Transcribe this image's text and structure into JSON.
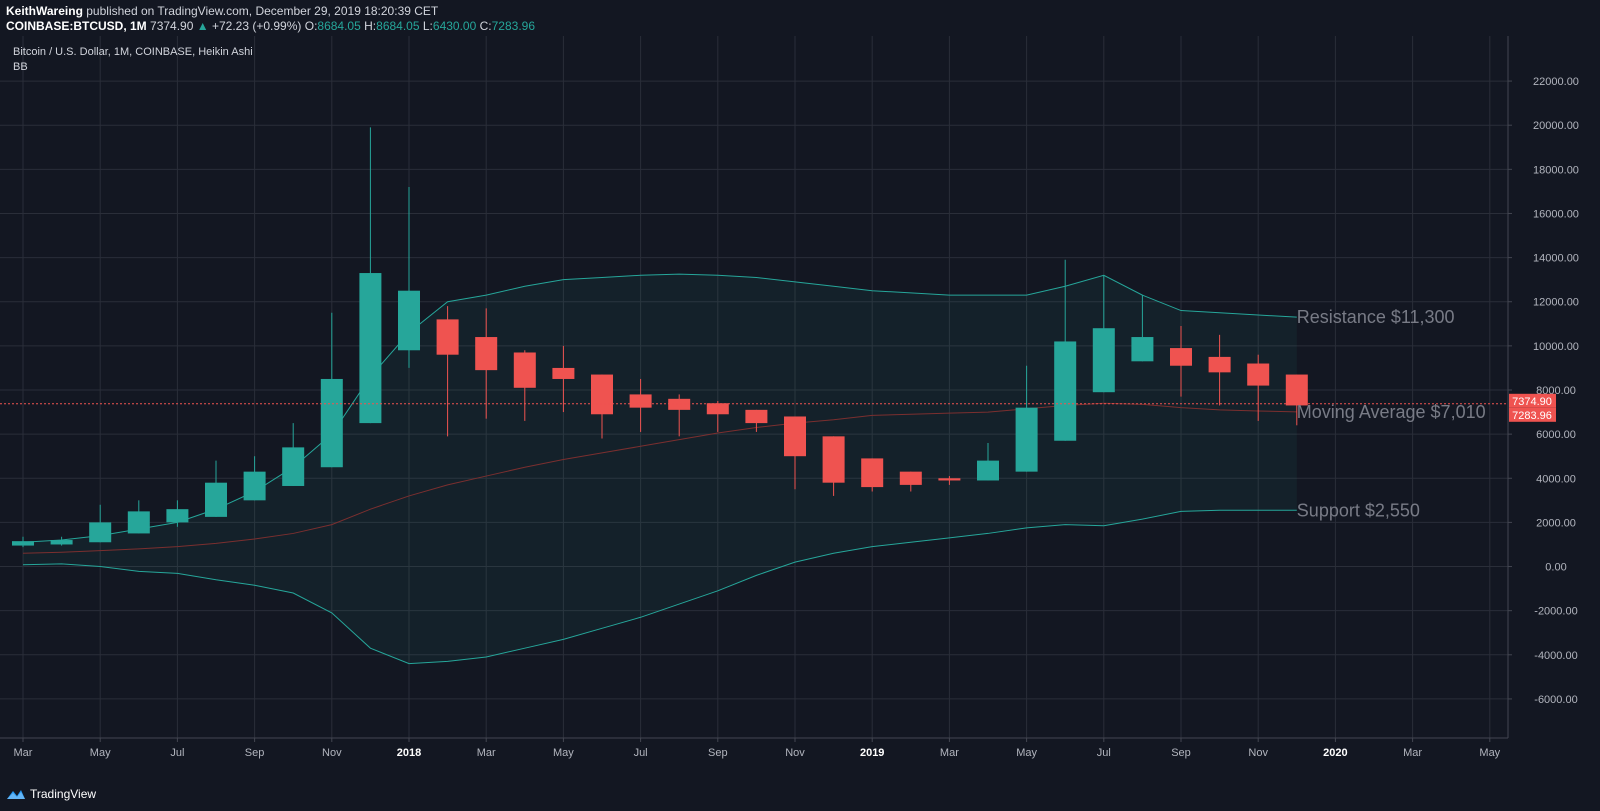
{
  "header": {
    "author": "KeithWareing",
    "published": "published on TradingView.com, December 29, 2019 18:20:39 CET",
    "symbol": "COINBASE:BTCUSD, 1M",
    "last": "7374.90",
    "change": "+72.23 (+0.99%)",
    "o_label": "O:",
    "o": "8684.05",
    "h_label": "H:",
    "h": "8684.05",
    "l_label": "L:",
    "l": "6430.00",
    "c_label": "C:",
    "c": "7283.96"
  },
  "legend": {
    "title": "Bitcoin / U.S. Dollar, 1M, COINBASE, Heikin Ashi",
    "indicator": "BB"
  },
  "footer": {
    "brand": "TradingView"
  },
  "colors": {
    "background": "#131722",
    "up": "#26a69a",
    "down": "#ef5350",
    "band": "#26a69a",
    "basis": "#7b2f2f",
    "grid": "#2a2e39",
    "text": "#b2b5be",
    "annotation": "#787b86"
  },
  "chart_data": {
    "type": "candlestick",
    "title": "Bitcoin / U.S. Dollar, 1M, COINBASE, Heikin Ashi",
    "ylim": [
      -7000,
      23000
    ],
    "yticks": [
      22000,
      20000,
      18000,
      16000,
      14000,
      12000,
      10000,
      8000,
      6000,
      4000,
      2000,
      0,
      -2000,
      -4000,
      -6000
    ],
    "ytick_labels": [
      "22000.00",
      "20000.00",
      "18000.00",
      "16000.00",
      "14000.00",
      "12000.00",
      "10000.00",
      "8000.00",
      "6000.00",
      "4000.00",
      "2000.00",
      "0.00",
      "-2000.00",
      "-4000.00",
      "-6000.00"
    ],
    "xticks": [
      {
        "i": 0,
        "label": "Mar",
        "bold": false
      },
      {
        "i": 2,
        "label": "May",
        "bold": false
      },
      {
        "i": 4,
        "label": "Jul",
        "bold": false
      },
      {
        "i": 6,
        "label": "Sep",
        "bold": false
      },
      {
        "i": 8,
        "label": "Nov",
        "bold": false
      },
      {
        "i": 10,
        "label": "2018",
        "bold": true
      },
      {
        "i": 12,
        "label": "Mar",
        "bold": false
      },
      {
        "i": 14,
        "label": "May",
        "bold": false
      },
      {
        "i": 16,
        "label": "Jul",
        "bold": false
      },
      {
        "i": 18,
        "label": "Sep",
        "bold": false
      },
      {
        "i": 20,
        "label": "Nov",
        "bold": false
      },
      {
        "i": 22,
        "label": "2019",
        "bold": true
      },
      {
        "i": 24,
        "label": "Mar",
        "bold": false
      },
      {
        "i": 26,
        "label": "May",
        "bold": false
      },
      {
        "i": 28,
        "label": "Jul",
        "bold": false
      },
      {
        "i": 30,
        "label": "Sep",
        "bold": false
      },
      {
        "i": 32,
        "label": "Nov",
        "bold": false
      },
      {
        "i": 34,
        "label": "2020",
        "bold": true
      },
      {
        "i": 36,
        "label": "Mar",
        "bold": false
      },
      {
        "i": 38,
        "label": "May",
        "bold": false
      }
    ],
    "x_slots": 40,
    "candles": [
      {
        "month": "2017-03",
        "open": 950,
        "high": 1350,
        "low": 880,
        "close": 1150
      },
      {
        "month": "2017-04",
        "open": 1000,
        "high": 1350,
        "low": 950,
        "close": 1200
      },
      {
        "month": "2017-05",
        "open": 1100,
        "high": 2800,
        "low": 1100,
        "close": 2000
      },
      {
        "month": "2017-06",
        "open": 1500,
        "high": 3000,
        "low": 1500,
        "close": 2500
      },
      {
        "month": "2017-07",
        "open": 2000,
        "high": 3000,
        "low": 1800,
        "close": 2600
      },
      {
        "month": "2017-08",
        "open": 2250,
        "high": 4800,
        "low": 2250,
        "close": 3800
      },
      {
        "month": "2017-09",
        "open": 3000,
        "high": 5000,
        "low": 3000,
        "close": 4300
      },
      {
        "month": "2017-10",
        "open": 3650,
        "high": 6500,
        "low": 3650,
        "close": 5400
      },
      {
        "month": "2017-11",
        "open": 4500,
        "high": 11500,
        "low": 4500,
        "close": 8500
      },
      {
        "month": "2017-12",
        "open": 6500,
        "high": 19900,
        "low": 6500,
        "close": 13300
      },
      {
        "month": "2018-01",
        "open": 9800,
        "high": 17200,
        "low": 9000,
        "close": 12500
      },
      {
        "month": "2018-02",
        "open": 11200,
        "high": 11800,
        "low": 5900,
        "close": 9600
      },
      {
        "month": "2018-03",
        "open": 10400,
        "high": 11700,
        "low": 6700,
        "close": 8900
      },
      {
        "month": "2018-04",
        "open": 9700,
        "high": 9800,
        "low": 6600,
        "close": 8100
      },
      {
        "month": "2018-05",
        "open": 9000,
        "high": 10000,
        "low": 7000,
        "close": 8500
      },
      {
        "month": "2018-06",
        "open": 8700,
        "high": 8700,
        "low": 5800,
        "close": 6900
      },
      {
        "month": "2018-07",
        "open": 7800,
        "high": 8500,
        "low": 6100,
        "close": 7200
      },
      {
        "month": "2018-08",
        "open": 7600,
        "high": 7800,
        "low": 5900,
        "close": 7100
      },
      {
        "month": "2018-09",
        "open": 7400,
        "high": 7500,
        "low": 6100,
        "close": 6900
      },
      {
        "month": "2018-10",
        "open": 7100,
        "high": 7100,
        "low": 6100,
        "close": 6500
      },
      {
        "month": "2018-11",
        "open": 6800,
        "high": 6800,
        "low": 3500,
        "close": 5000
      },
      {
        "month": "2018-12",
        "open": 5900,
        "high": 5900,
        "low": 3200,
        "close": 3800
      },
      {
        "month": "2019-01",
        "open": 4900,
        "high": 4900,
        "low": 3400,
        "close": 3600
      },
      {
        "month": "2019-02",
        "open": 4300,
        "high": 4300,
        "low": 3400,
        "close": 3700
      },
      {
        "month": "2019-03",
        "open": 4000,
        "high": 4100,
        "low": 3700,
        "close": 3900
      },
      {
        "month": "2019-04",
        "open": 3900,
        "high": 5600,
        "low": 3900,
        "close": 4800
      },
      {
        "month": "2019-05",
        "open": 4300,
        "high": 9100,
        "low": 4300,
        "close": 7200
      },
      {
        "month": "2019-06",
        "open": 5700,
        "high": 13900,
        "low": 5700,
        "close": 10200
      },
      {
        "month": "2019-07",
        "open": 7900,
        "high": 13200,
        "low": 7900,
        "close": 10800
      },
      {
        "month": "2019-08",
        "open": 9300,
        "high": 12300,
        "low": 9300,
        "close": 10400
      },
      {
        "month": "2019-09",
        "open": 9900,
        "high": 10900,
        "low": 7700,
        "close": 9100
      },
      {
        "month": "2019-10",
        "open": 9500,
        "high": 10500,
        "low": 7300,
        "close": 8800
      },
      {
        "month": "2019-11",
        "open": 9200,
        "high": 9600,
        "low": 6600,
        "close": 8200
      },
      {
        "month": "2019-12",
        "open": 8700,
        "high": 8700,
        "low": 6400,
        "close": 7300
      }
    ],
    "bollinger": {
      "upper": [
        80,
        120,
        0,
        -220,
        -310,
        -600,
        -850,
        -1200,
        -2100,
        -3700,
        -4400,
        -4300,
        -4100,
        -3700,
        -3300,
        -2800,
        -2300,
        -1700,
        -1100,
        -400,
        200,
        600,
        900,
        1100,
        1300,
        1500,
        1750,
        1900,
        1850,
        2150,
        2500,
        2550,
        2550,
        2550
      ],
      "basis": [
        600,
        650,
        720,
        800,
        900,
        1050,
        1250,
        1500,
        1900,
        2600,
        3200,
        3700,
        4100,
        4500,
        4850,
        5150,
        5450,
        5750,
        6050,
        6300,
        6500,
        6650,
        6850,
        6900,
        6950,
        7000,
        7150,
        7300,
        7400,
        7350,
        7200,
        7100,
        7050,
        7010
      ],
      "lower": [
        80,
        120,
        0,
        -220,
        -310,
        -600,
        -850,
        -1200,
        -2100,
        -3700,
        -4400,
        -4300,
        -4100,
        -3700,
        -3300,
        -2800,
        -2300,
        -1700,
        -1100,
        -400,
        200,
        600,
        900,
        1100,
        1300,
        1500,
        1750,
        1900,
        1850,
        2150,
        2500,
        2550,
        2550,
        2550
      ],
      "upper_band": [
        80,
        120,
        0,
        -220,
        -310,
        -600,
        -850,
        -1200,
        -2100,
        -3700,
        -4400,
        -4300,
        -4100,
        -3700,
        -3300,
        -2800,
        -2300,
        -1700,
        -1100,
        -400,
        200,
        600,
        900,
        1100,
        1300,
        1500,
        1750,
        1900,
        1850,
        2150,
        2500,
        2550,
        2550,
        2550
      ],
      "top": [
        1100,
        1200,
        1400,
        1700,
        2000,
        2600,
        3400,
        4500,
        6000,
        8600,
        10600,
        12000,
        12300,
        12700,
        13000,
        13100,
        13200,
        13250,
        13200,
        13100,
        12900,
        12700,
        12500,
        12400,
        12300,
        12300,
        12300,
        12700,
        13200,
        12300,
        11600,
        11500,
        11400,
        11300
      ]
    },
    "price_lines": [
      {
        "value": 7374.9,
        "label": "7374.90"
      },
      {
        "value": 7283.96,
        "label": "7283.96"
      }
    ],
    "annotations": [
      {
        "text": "Resistance $11,300",
        "value": 11300
      },
      {
        "text": "Moving Average $7,010",
        "value": 7010
      },
      {
        "text": "Support $2,550",
        "value": 2550
      }
    ]
  }
}
